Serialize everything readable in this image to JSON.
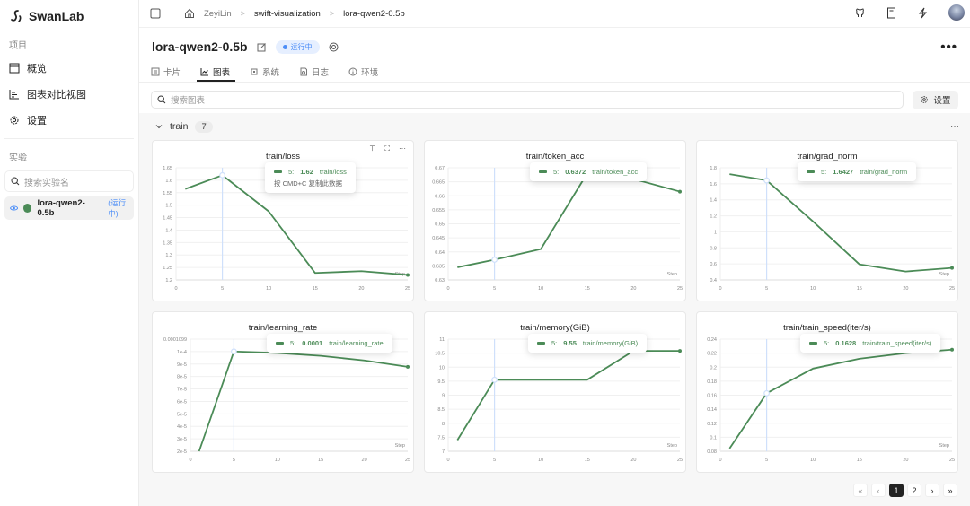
{
  "sidebar": {
    "brand": "SwanLab",
    "project_label": "项目",
    "items": [
      {
        "label": "概览",
        "icon": "table-icon"
      },
      {
        "label": "图表对比视图",
        "icon": "bar-chart-icon"
      },
      {
        "label": "设置",
        "icon": "gear-icon"
      }
    ],
    "experiments_label": "实验",
    "search_placeholder": "搜索实验名",
    "experiments": [
      {
        "name": "lora-qwen2-0.5b",
        "status": "(运行中)",
        "color": "#4b8b57"
      }
    ]
  },
  "breadcrumb": [
    "ZeyiLin",
    "swift-visualization",
    "lora-qwen2-0.5b"
  ],
  "header": {
    "title": "lora-qwen2-0.5b",
    "status": "运行中",
    "more": "•••"
  },
  "tabs": [
    {
      "label": "卡片",
      "icon": "card-icon"
    },
    {
      "label": "图表",
      "icon": "line-chart-icon",
      "active": true
    },
    {
      "label": "系统",
      "icon": "cpu-icon"
    },
    {
      "label": "日志",
      "icon": "log-icon"
    },
    {
      "label": "环境",
      "icon": "info-icon"
    }
  ],
  "toolbar": {
    "search_placeholder": "搜索图表",
    "settings_label": "设置"
  },
  "group": {
    "name": "train",
    "count": "7",
    "more": "···"
  },
  "tooltip_hint": "按 CMD+C 复制此数据",
  "pagination": {
    "first": "«",
    "prev": "‹",
    "pages": [
      "1",
      "2"
    ],
    "current": "1",
    "next": "›",
    "last": "»"
  },
  "chart_data": [
    {
      "type": "line",
      "title": "train/loss",
      "xlabel": "Step",
      "x": [
        1,
        5,
        10,
        15,
        20,
        25
      ],
      "values": [
        1.565,
        1.62,
        1.475,
        1.228,
        1.235,
        1.22
      ],
      "ylim": [
        1.2,
        1.65
      ],
      "yticks": [
        "1.2",
        "1.25",
        "1.3",
        "1.35",
        "1.4",
        "1.45",
        "1.5",
        "1.55",
        "1.6",
        "1.65"
      ],
      "xticks": [
        "0",
        "5",
        "10",
        "15",
        "20",
        "25"
      ],
      "tooltip": {
        "step": "5:",
        "value": "1.62",
        "name": "train/loss"
      }
    },
    {
      "type": "line",
      "title": "train/token_acc",
      "xlabel": "Step",
      "x": [
        1,
        5,
        10,
        15,
        20,
        25
      ],
      "values": [
        0.6345,
        0.6372,
        0.641,
        0.668,
        0.666,
        0.6615
      ],
      "ylim": [
        0.63,
        0.67
      ],
      "yticks": [
        "0.63",
        "0.635",
        "0.64",
        "0.645",
        "0.65",
        "0.655",
        "0.66",
        "0.665",
        "0.67"
      ],
      "xticks": [
        "0",
        "5",
        "10",
        "15",
        "20",
        "25"
      ],
      "tooltip": {
        "step": "5:",
        "value": "0.6372",
        "name": "train/token_acc"
      }
    },
    {
      "type": "line",
      "title": "train/grad_norm",
      "xlabel": "Step",
      "x": [
        1,
        5,
        10,
        15,
        20,
        25
      ],
      "values": [
        1.72,
        1.6427,
        1.13,
        0.595,
        0.505,
        0.55
      ],
      "ylim": [
        0.4,
        1.8
      ],
      "yticks": [
        "0.4",
        "0.6",
        "0.8",
        "1",
        "1.2",
        "1.4",
        "1.6",
        "1.8"
      ],
      "xticks": [
        "0",
        "5",
        "10",
        "15",
        "20",
        "25"
      ],
      "tooltip": {
        "step": "5:",
        "value": "1.6427",
        "name": "train/grad_norm"
      }
    },
    {
      "type": "line",
      "title": "train/learning_rate",
      "xlabel": "Step",
      "x": [
        1,
        5,
        10,
        15,
        20,
        25
      ],
      "values": [
        2e-05,
        0.0001,
        9.88e-05,
        9.65e-05,
        9.28e-05,
        8.77e-05
      ],
      "ylim": [
        2e-05,
        0.0001099
      ],
      "yticks": [
        "2e-5",
        "3e-5",
        "4e-5",
        "5e-5",
        "6e-5",
        "7e-5",
        "8e-5",
        "9e-5",
        "1e-4",
        "0.0001099"
      ],
      "xticks": [
        "0",
        "5",
        "10",
        "15",
        "20",
        "25"
      ],
      "tooltip": {
        "step": "5:",
        "value": "0.0001",
        "name": "train/learning_rate"
      }
    },
    {
      "type": "line",
      "title": "train/memory(GiB)",
      "xlabel": "Step",
      "x": [
        1,
        5,
        10,
        15,
        20,
        25
      ],
      "values": [
        7.4,
        9.55,
        9.55,
        9.55,
        10.58,
        10.58
      ],
      "ylim": [
        7,
        11
      ],
      "yticks": [
        "7",
        "7.5",
        "8",
        "8.5",
        "9",
        "9.5",
        "10",
        "10.5",
        "11"
      ],
      "xticks": [
        "0",
        "5",
        "10",
        "15",
        "20",
        "25"
      ],
      "tooltip": {
        "step": "5:",
        "value": "9.55",
        "name": "train/memory(GiB)"
      }
    },
    {
      "type": "line",
      "title": "train/train_speed(iter/s)",
      "xlabel": "Step",
      "x": [
        1,
        5,
        10,
        15,
        20,
        25
      ],
      "values": [
        0.084,
        0.1628,
        0.198,
        0.212,
        0.22,
        0.225
      ],
      "ylim": [
        0.08,
        0.24
      ],
      "yticks": [
        "0.08",
        "0.1",
        "0.12",
        "0.14",
        "0.16",
        "0.18",
        "0.2",
        "0.22",
        "0.24"
      ],
      "xticks": [
        "0",
        "5",
        "10",
        "15",
        "20",
        "25"
      ],
      "tooltip": {
        "step": "5:",
        "value": "0.1628",
        "name": "train/train_speed(iter/s)"
      }
    }
  ],
  "colors": {
    "series": "#4b8b57",
    "accent": "#4d8ef7",
    "crosshair": "#cfe0fb"
  }
}
